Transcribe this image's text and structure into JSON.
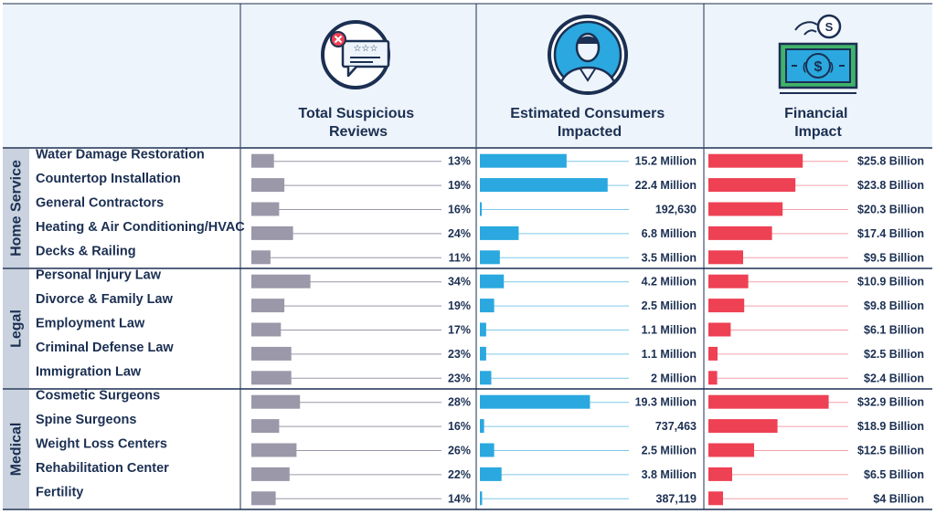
{
  "colors": {
    "header_bg": "#eef4fb",
    "group_bg": "#c9d2de",
    "navy": "#1b2f52",
    "reviews_bar": "#9a98a9",
    "consumers_bar": "#2aa8df",
    "financial_bar": "#ee4154",
    "money_green": "#3fb36b"
  },
  "icons": {
    "reviews": "suspicious-review-icon",
    "consumers": "consumer-person-icon",
    "financial": "money-bill-icon"
  },
  "headers": {
    "reviews": [
      "Total Suspicious",
      "Reviews"
    ],
    "consumers": [
      "Estimated Consumers",
      "Impacted"
    ],
    "financial": [
      "Financial",
      "Impact"
    ]
  },
  "chart_data": {
    "type": "bar",
    "groups": [
      {
        "name": "Home Service",
        "rows": [
          {
            "category": "Water Damage Restoration",
            "reviews_pct": 13,
            "reviews_label": "13%",
            "consumers": 15200000,
            "consumers_label": "15.2 Million",
            "financial": 25.8,
            "financial_label": "$25.8 Billion"
          },
          {
            "category": "Countertop Installation",
            "reviews_pct": 19,
            "reviews_label": "19%",
            "consumers": 22400000,
            "consumers_label": "22.4 Million",
            "financial": 23.8,
            "financial_label": "$23.8 Billion"
          },
          {
            "category": "General Contractors",
            "reviews_pct": 16,
            "reviews_label": "16%",
            "consumers": 192630,
            "consumers_label": "192,630",
            "financial": 20.3,
            "financial_label": "$20.3 Billion"
          },
          {
            "category": "Heating & Air Conditioning/HVAC",
            "reviews_pct": 24,
            "reviews_label": "24%",
            "consumers": 6800000,
            "consumers_label": "6.8 Million",
            "financial": 17.4,
            "financial_label": "$17.4 Billion"
          },
          {
            "category": "Decks & Railing",
            "reviews_pct": 11,
            "reviews_label": "11%",
            "consumers": 3500000,
            "consumers_label": "3.5 Million",
            "financial": 9.5,
            "financial_label": "$9.5 Billion"
          }
        ]
      },
      {
        "name": "Legal",
        "rows": [
          {
            "category": "Personal Injury Law",
            "reviews_pct": 34,
            "reviews_label": "34%",
            "consumers": 4200000,
            "consumers_label": "4.2 Million",
            "financial": 10.9,
            "financial_label": "$10.9 Billion"
          },
          {
            "category": "Divorce & Family Law",
            "reviews_pct": 19,
            "reviews_label": "19%",
            "consumers": 2500000,
            "consumers_label": "2.5 Million",
            "financial": 9.8,
            "financial_label": "$9.8 Billion"
          },
          {
            "category": "Employment Law",
            "reviews_pct": 17,
            "reviews_label": "17%",
            "consumers": 1100000,
            "consumers_label": "1.1 Million",
            "financial": 6.1,
            "financial_label": "$6.1 Billion"
          },
          {
            "category": "Criminal Defense Law",
            "reviews_pct": 23,
            "reviews_label": "23%",
            "consumers": 1100000,
            "consumers_label": "1.1 Million",
            "financial": 2.5,
            "financial_label": "$2.5 Billion"
          },
          {
            "category": "Immigration Law",
            "reviews_pct": 23,
            "reviews_label": "23%",
            "consumers": 2000000,
            "consumers_label": "2 Million",
            "financial": 2.4,
            "financial_label": "$2.4 Billion"
          }
        ]
      },
      {
        "name": "Medical",
        "rows": [
          {
            "category": "Cosmetic Surgeons",
            "reviews_pct": 28,
            "reviews_label": "28%",
            "consumers": 19300000,
            "consumers_label": "19.3 Million",
            "financial": 32.9,
            "financial_label": "$32.9 Billion"
          },
          {
            "category": "Spine Surgeons",
            "reviews_pct": 16,
            "reviews_label": "16%",
            "consumers": 737463,
            "consumers_label": "737,463",
            "financial": 18.9,
            "financial_label": "$18.9 Billion"
          },
          {
            "category": "Weight Loss Centers",
            "reviews_pct": 26,
            "reviews_label": "26%",
            "consumers": 2500000,
            "consumers_label": "2.5 Million",
            "financial": 12.5,
            "financial_label": "$12.5 Billion"
          },
          {
            "category": "Rehabilitation Center",
            "reviews_pct": 22,
            "reviews_label": "22%",
            "consumers": 3800000,
            "consumers_label": "3.8 Million",
            "financial": 6.5,
            "financial_label": "$6.5 Billion"
          },
          {
            "category": "Fertility",
            "reviews_pct": 14,
            "reviews_label": "14%",
            "consumers": 387119,
            "consumers_label": "387,119",
            "financial": 4,
            "financial_label": "$4 Billion"
          }
        ]
      }
    ]
  }
}
